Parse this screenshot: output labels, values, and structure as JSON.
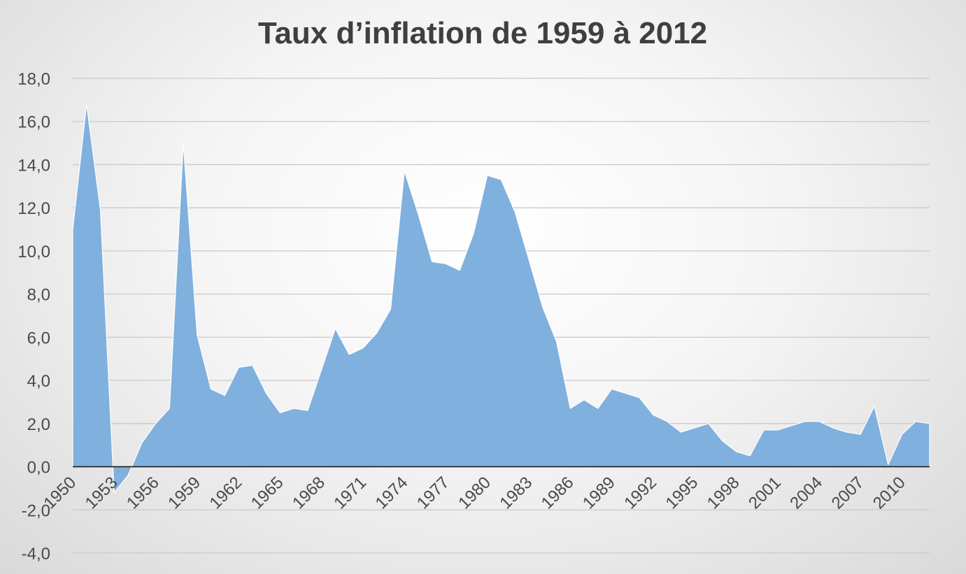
{
  "chart_data": {
    "type": "area",
    "title": "Taux d’inflation de 1959 à 2012",
    "xlabel": "",
    "ylabel": "",
    "ylim": [
      -4,
      18
    ],
    "y_ticks": [
      "-4,0",
      "-2,0",
      "0,0",
      "2,0",
      "4,0",
      "6,0",
      "8,0",
      "10,0",
      "12,0",
      "14,0",
      "16,0",
      "18,0"
    ],
    "x_tick_labels": [
      "1950",
      "1953",
      "1956",
      "1959",
      "1962",
      "1965",
      "1968",
      "1971",
      "1974",
      "1977",
      "1980",
      "1983",
      "1986",
      "1989",
      "1992",
      "1995",
      "1998",
      "2001",
      "2004",
      "2007",
      "2010"
    ],
    "grid": true,
    "legend": "none",
    "series": [
      {
        "color": "#80b0dd",
        "x": [
          1950,
          1951,
          1952,
          1953,
          1954,
          1955,
          1956,
          1957,
          1958,
          1959,
          1960,
          1961,
          1962,
          1963,
          1964,
          1965,
          1966,
          1967,
          1968,
          1969,
          1970,
          1971,
          1972,
          1973,
          1974,
          1975,
          1976,
          1977,
          1978,
          1979,
          1980,
          1981,
          1982,
          1983,
          1984,
          1985,
          1986,
          1987,
          1988,
          1989,
          1990,
          1991,
          1992,
          1993,
          1994,
          1995,
          1996,
          1997,
          1998,
          1999,
          2000,
          2001,
          2002,
          2003,
          2004,
          2005,
          2006,
          2007,
          2008,
          2009,
          2010,
          2011,
          2012
        ],
        "values": [
          11.0,
          16.8,
          11.9,
          -1.2,
          -0.4,
          1.1,
          2.0,
          2.7,
          15.0,
          6.1,
          3.6,
          3.3,
          4.6,
          4.7,
          3.4,
          2.5,
          2.7,
          2.6,
          4.5,
          6.4,
          5.2,
          5.5,
          6.2,
          7.3,
          13.7,
          11.7,
          9.5,
          9.4,
          9.1,
          10.8,
          13.5,
          13.3,
          11.8,
          9.6,
          7.4,
          5.8,
          2.7,
          3.1,
          2.7,
          3.6,
          3.4,
          3.2,
          2.4,
          2.1,
          1.6,
          1.8,
          2.0,
          1.2,
          0.7,
          0.5,
          1.7,
          1.7,
          1.9,
          2.1,
          2.1,
          1.8,
          1.6,
          1.5,
          2.8,
          0.1,
          1.5,
          2.1,
          2.0
        ]
      }
    ]
  }
}
